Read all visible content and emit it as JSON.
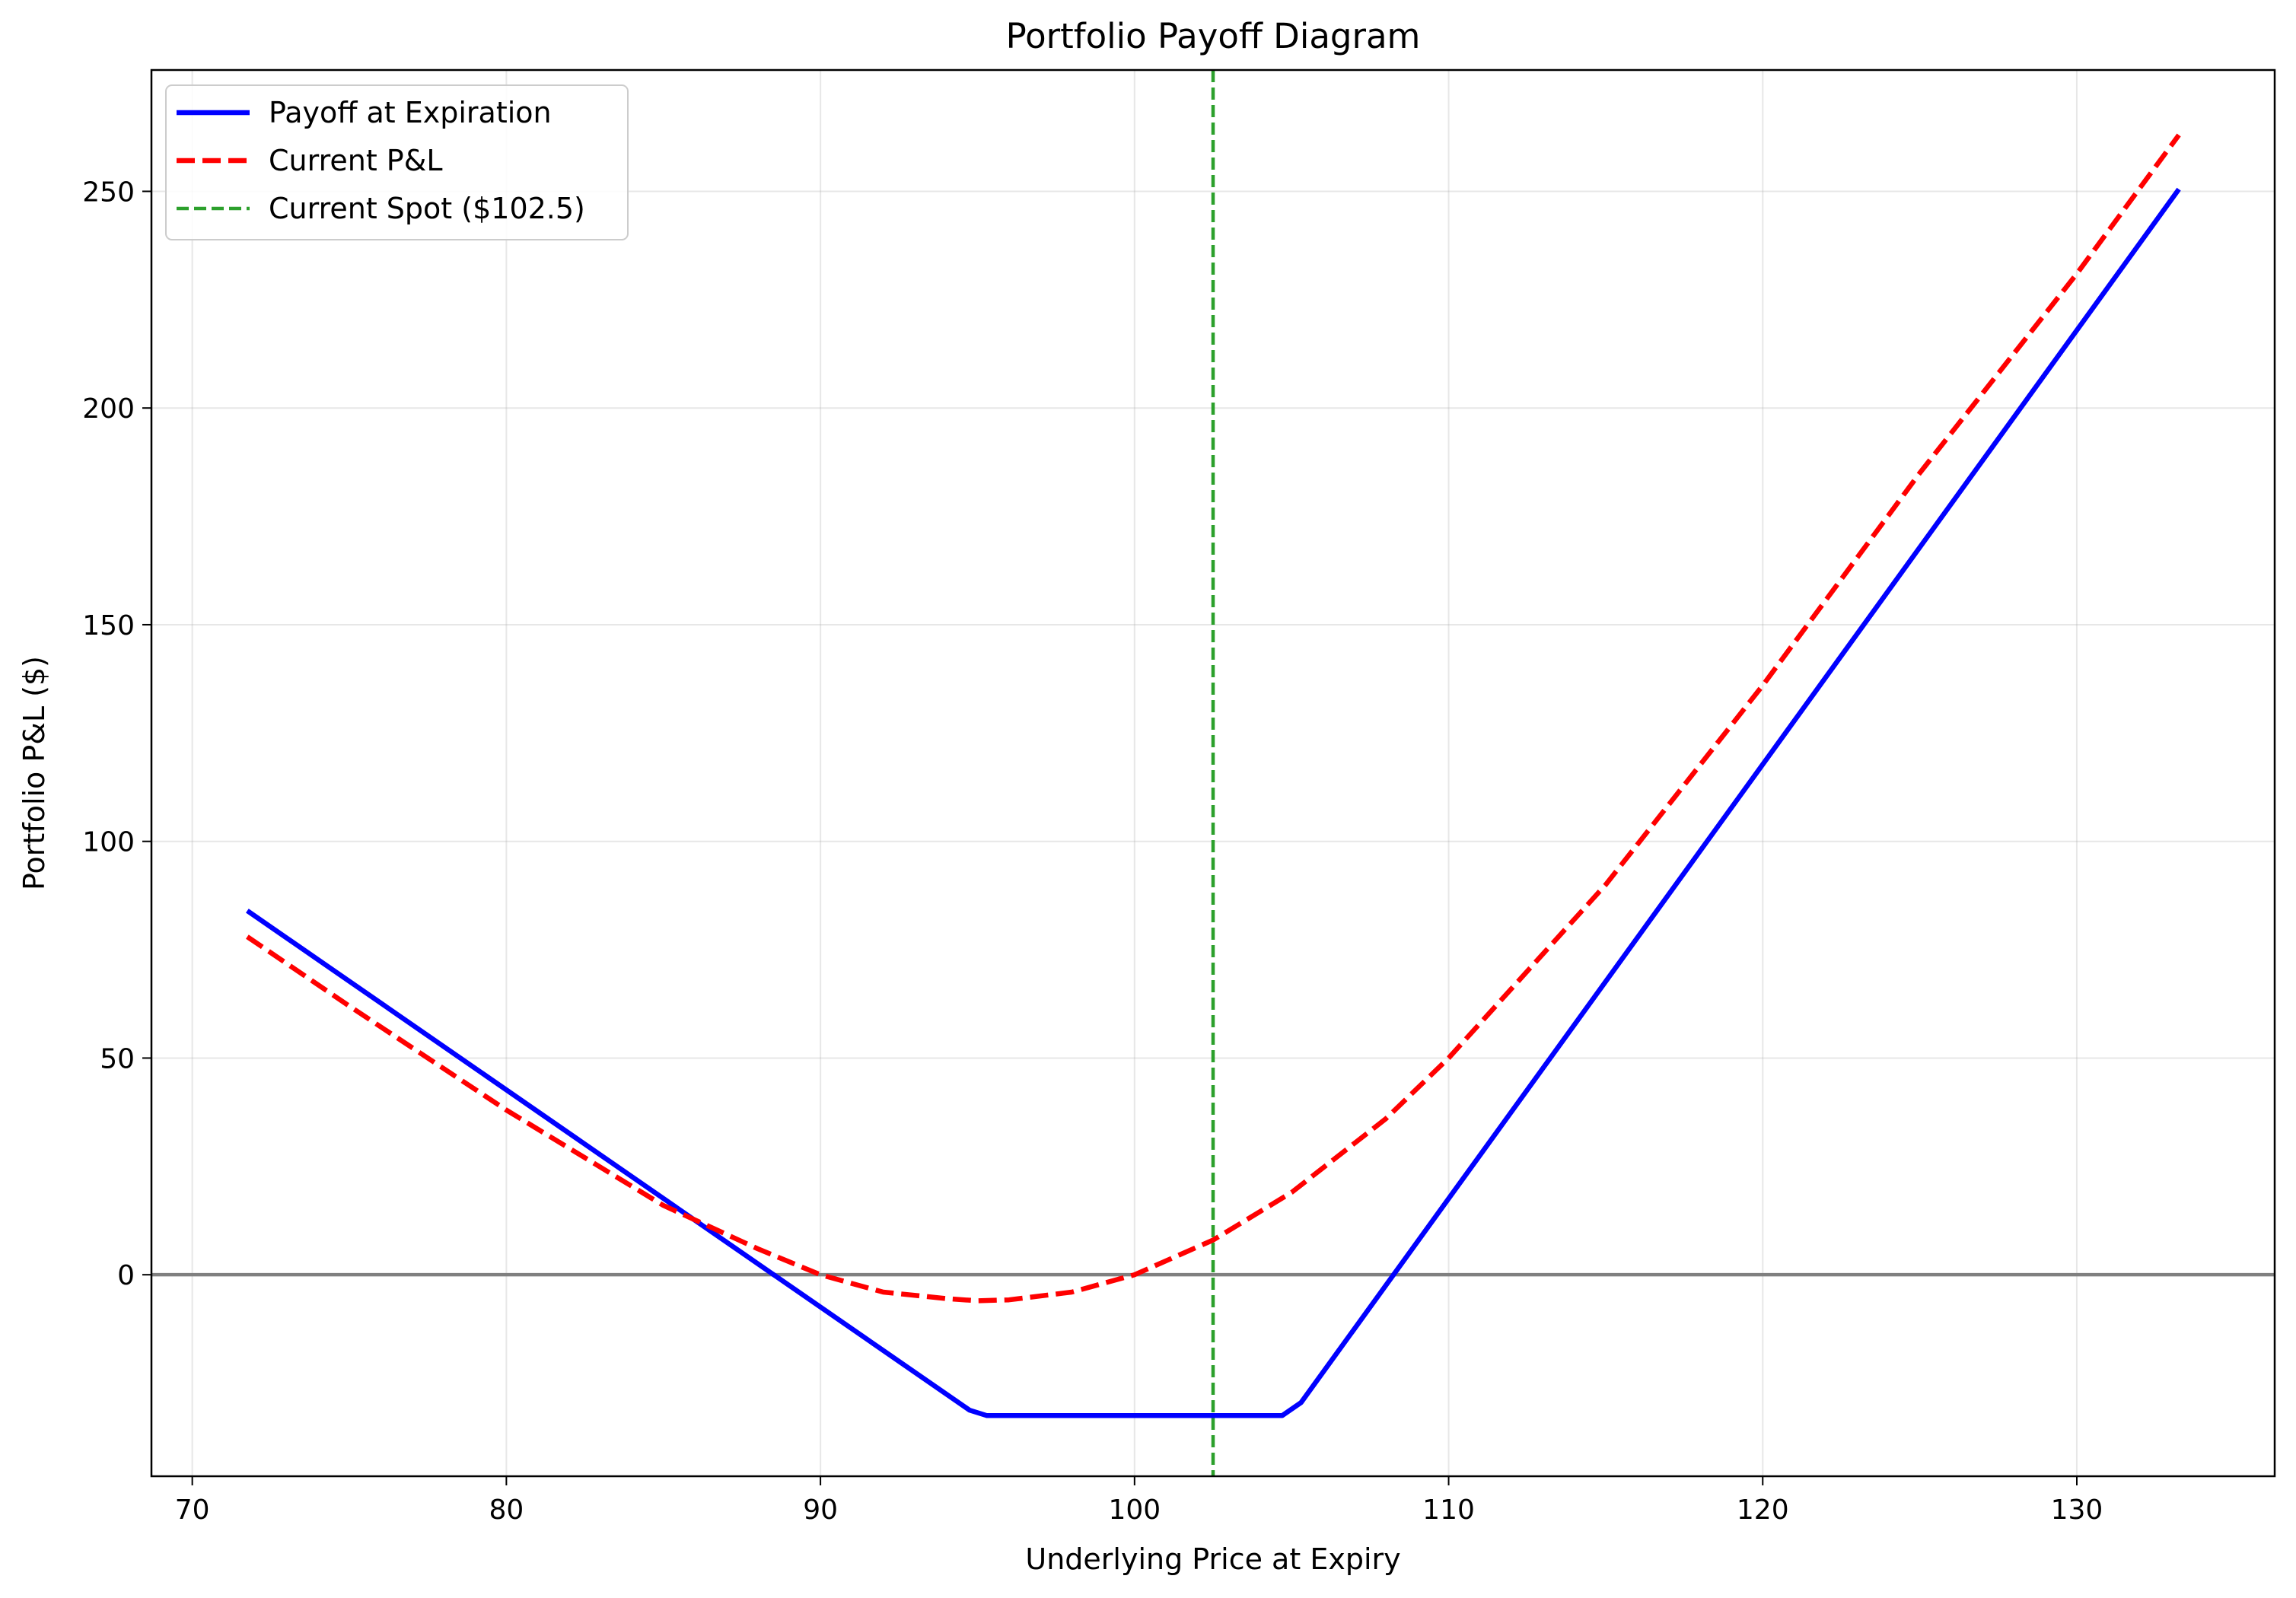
{
  "chart_data": {
    "type": "line",
    "title": "Portfolio Payoff Diagram",
    "xlabel": "Underlying Price at Expiry",
    "ylabel": "Portfolio P&L ($)",
    "xlim": [
      68.7,
      136.3
    ],
    "ylim": [
      -46.5,
      278
    ],
    "xticks": [
      70,
      80,
      90,
      100,
      110,
      120,
      130
    ],
    "yticks": [
      0,
      50,
      100,
      150,
      200,
      250
    ],
    "grid": true,
    "legend_position": "top-left",
    "zero_line": {
      "y": 0,
      "color": "#808080"
    },
    "current_spot": {
      "label": "Current Spot ($102.5)",
      "x": 102.5,
      "color": "#2ca02c",
      "style": "dashed"
    },
    "series": [
      {
        "name": "Payoff at Expiration",
        "color": "#0000ff",
        "style": "solid",
        "points": [
          [
            71.75,
            84
          ],
          [
            94.75,
            -31.25
          ],
          [
            95.3,
            -32.5
          ],
          [
            104.7,
            -32.5
          ],
          [
            105.3,
            -29.5
          ],
          [
            133.25,
            250.5
          ]
        ]
      },
      {
        "name": "Current P&L",
        "color": "#ff0000",
        "style": "dashed",
        "points": [
          [
            71.75,
            78
          ],
          [
            75,
            62
          ],
          [
            80,
            38
          ],
          [
            85,
            16
          ],
          [
            88,
            6
          ],
          [
            90,
            0
          ],
          [
            92,
            -4
          ],
          [
            94,
            -5.5
          ],
          [
            95,
            -6
          ],
          [
            96,
            -5.8
          ],
          [
            98,
            -4
          ],
          [
            100,
            0
          ],
          [
            102.5,
            8
          ],
          [
            105,
            19
          ],
          [
            108,
            36
          ],
          [
            110,
            50
          ],
          [
            115,
            90
          ],
          [
            120,
            136
          ],
          [
            125,
            185
          ],
          [
            130,
            231
          ],
          [
            133.25,
            263
          ]
        ]
      }
    ]
  }
}
